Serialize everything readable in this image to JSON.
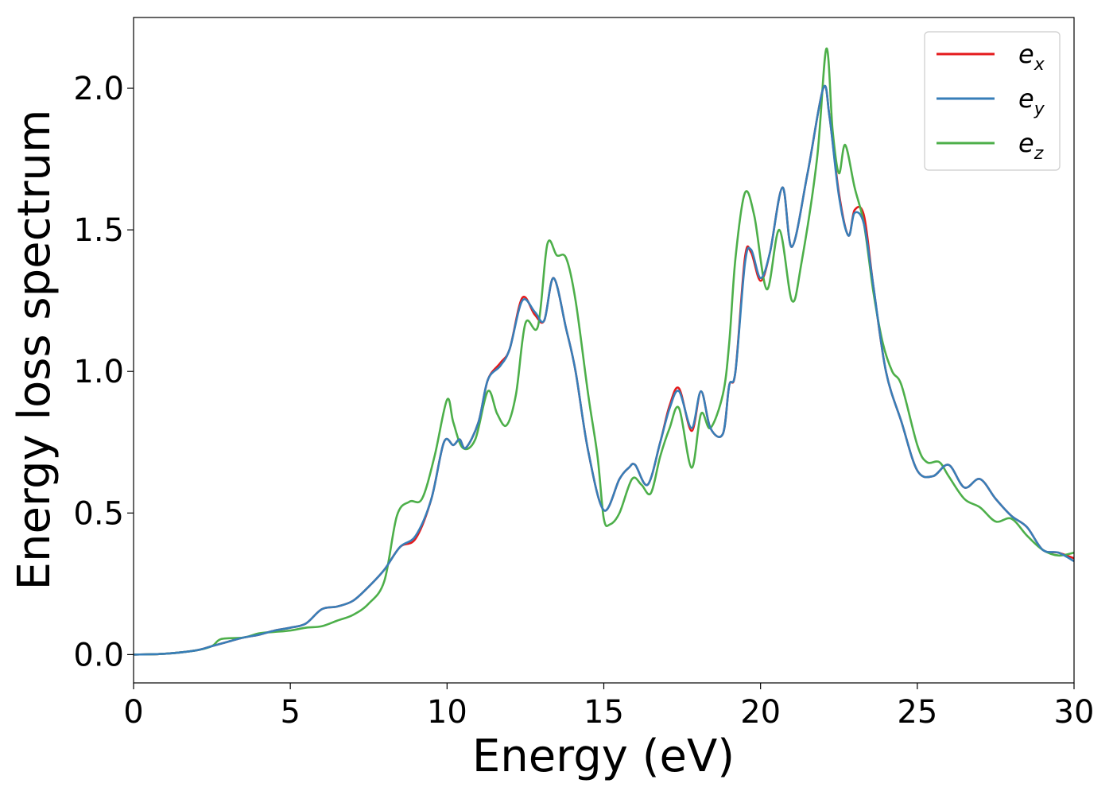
{
  "chart_data": {
    "type": "line",
    "title": "",
    "xlabel": "Energy (eV)",
    "ylabel": "Energy loss spectrum",
    "xlim": [
      0,
      30
    ],
    "ylim": [
      -0.1,
      2.25
    ],
    "xticks": [
      0,
      5,
      10,
      15,
      20,
      25,
      30
    ],
    "xtick_labels": [
      "0",
      "5",
      "10",
      "15",
      "20",
      "25",
      "30"
    ],
    "yticks": [
      0.0,
      0.5,
      1.0,
      1.5,
      2.0
    ],
    "ytick_labels": [
      "0.0",
      "0.5",
      "1.0",
      "1.5",
      "2.0"
    ],
    "grid": false,
    "legend_position": "top-right",
    "series": [
      {
        "name": "e_x",
        "label_base": "e",
        "label_sub": "x",
        "color": "#e41a1c",
        "x": [
          0,
          1,
          2,
          2.5,
          3,
          3.5,
          4,
          4.5,
          5,
          5.5,
          6,
          6.5,
          7,
          7.5,
          8,
          8.5,
          9,
          9.5,
          9.9,
          10.2,
          10.4,
          10.6,
          11,
          11.3,
          11.7,
          12,
          12.4,
          12.8,
          13.1,
          13.4,
          13.8,
          14.1,
          14.5,
          15,
          15.5,
          15.8,
          16,
          16.4,
          16.8,
          17.1,
          17.4,
          17.8,
          18.1,
          18.4,
          18.8,
          19,
          19.2,
          19.5,
          19.7,
          20,
          20.3,
          20.7,
          21,
          21.5,
          22,
          22.2,
          22.5,
          22.8,
          23,
          23.3,
          23.6,
          24,
          24.5,
          25,
          25.5,
          26,
          26.5,
          27,
          27.5,
          28,
          28.5,
          29,
          29.5,
          30
        ],
        "y": [
          0,
          0.003,
          0.015,
          0.03,
          0.045,
          0.06,
          0.07,
          0.085,
          0.095,
          0.11,
          0.16,
          0.17,
          0.19,
          0.24,
          0.3,
          0.38,
          0.41,
          0.55,
          0.75,
          0.74,
          0.76,
          0.73,
          0.82,
          0.97,
          1.03,
          1.08,
          1.26,
          1.2,
          1.18,
          1.33,
          1.15,
          1.0,
          0.72,
          0.51,
          0.62,
          0.66,
          0.67,
          0.6,
          0.75,
          0.88,
          0.94,
          0.79,
          0.93,
          0.8,
          0.78,
          0.95,
          1.0,
          1.4,
          1.42,
          1.32,
          1.42,
          1.65,
          1.44,
          1.7,
          2.0,
          1.9,
          1.63,
          1.48,
          1.57,
          1.55,
          1.3,
          1.0,
          0.82,
          0.65,
          0.63,
          0.67,
          0.59,
          0.62,
          0.55,
          0.49,
          0.45,
          0.37,
          0.36,
          0.34
        ]
      },
      {
        "name": "e_y",
        "label_base": "e",
        "label_sub": "y",
        "color": "#377eb8",
        "x": [
          0,
          1,
          2,
          2.5,
          3,
          3.5,
          4,
          4.5,
          5,
          5.5,
          6,
          6.5,
          7,
          7.5,
          8,
          8.5,
          9,
          9.5,
          9.9,
          10.2,
          10.4,
          10.6,
          11,
          11.3,
          11.7,
          12,
          12.4,
          12.8,
          13.1,
          13.4,
          13.8,
          14.1,
          14.5,
          15,
          15.5,
          15.8,
          16,
          16.4,
          16.8,
          17.1,
          17.4,
          17.8,
          18.1,
          18.4,
          18.8,
          19,
          19.2,
          19.5,
          19.7,
          20,
          20.3,
          20.7,
          21,
          21.5,
          22,
          22.2,
          22.5,
          22.8,
          23,
          23.3,
          23.6,
          24,
          24.5,
          25,
          25.5,
          26,
          26.5,
          27,
          27.5,
          28,
          28.5,
          29,
          29.5,
          30
        ],
        "y": [
          0,
          0.003,
          0.015,
          0.03,
          0.045,
          0.06,
          0.07,
          0.085,
          0.095,
          0.11,
          0.16,
          0.17,
          0.19,
          0.24,
          0.3,
          0.38,
          0.42,
          0.55,
          0.75,
          0.74,
          0.76,
          0.73,
          0.82,
          0.97,
          1.02,
          1.08,
          1.25,
          1.21,
          1.18,
          1.33,
          1.15,
          1.0,
          0.72,
          0.51,
          0.62,
          0.66,
          0.67,
          0.6,
          0.75,
          0.87,
          0.93,
          0.8,
          0.93,
          0.8,
          0.78,
          0.95,
          1.0,
          1.38,
          1.43,
          1.33,
          1.42,
          1.65,
          1.44,
          1.7,
          2.0,
          1.9,
          1.62,
          1.48,
          1.56,
          1.52,
          1.3,
          1.0,
          0.82,
          0.65,
          0.63,
          0.67,
          0.59,
          0.62,
          0.55,
          0.49,
          0.45,
          0.37,
          0.36,
          0.33
        ]
      },
      {
        "name": "e_z",
        "label_base": "e",
        "label_sub": "z",
        "color": "#4daf4a",
        "x": [
          0,
          1,
          2,
          2.5,
          2.8,
          3.5,
          4,
          4.5,
          5,
          5.5,
          6,
          6.5,
          7,
          7.5,
          8,
          8.4,
          8.8,
          9.2,
          9.6,
          10,
          10.2,
          10.5,
          10.9,
          11.3,
          11.6,
          11.9,
          12.2,
          12.5,
          12.9,
          13.2,
          13.5,
          13.8,
          14.1,
          14.5,
          14.8,
          15,
          15.2,
          15.5,
          15.9,
          16.2,
          16.5,
          16.8,
          17.1,
          17.4,
          17.8,
          18.1,
          18.4,
          18.8,
          19,
          19.2,
          19.5,
          19.8,
          20.2,
          20.6,
          21,
          21.3,
          21.8,
          22.1,
          22.3,
          22.5,
          22.7,
          23,
          23.3,
          23.6,
          23.9,
          24.2,
          24.5,
          25,
          25.3,
          25.7,
          26,
          26.5,
          27,
          27.5,
          28,
          28.5,
          29,
          29.5,
          30
        ],
        "y": [
          0,
          0.003,
          0.015,
          0.03,
          0.055,
          0.06,
          0.075,
          0.08,
          0.085,
          0.095,
          0.1,
          0.12,
          0.14,
          0.18,
          0.26,
          0.49,
          0.54,
          0.55,
          0.7,
          0.9,
          0.82,
          0.73,
          0.76,
          0.93,
          0.85,
          0.81,
          0.92,
          1.17,
          1.16,
          1.45,
          1.41,
          1.4,
          1.25,
          0.92,
          0.7,
          0.48,
          0.46,
          0.5,
          0.62,
          0.6,
          0.57,
          0.7,
          0.8,
          0.87,
          0.66,
          0.85,
          0.8,
          0.92,
          1.1,
          1.4,
          1.63,
          1.55,
          1.29,
          1.5,
          1.25,
          1.38,
          1.75,
          2.14,
          1.85,
          1.7,
          1.8,
          1.65,
          1.52,
          1.28,
          1.1,
          1.0,
          0.95,
          0.74,
          0.68,
          0.68,
          0.63,
          0.55,
          0.52,
          0.47,
          0.48,
          0.42,
          0.37,
          0.35,
          0.36
        ]
      }
    ]
  }
}
